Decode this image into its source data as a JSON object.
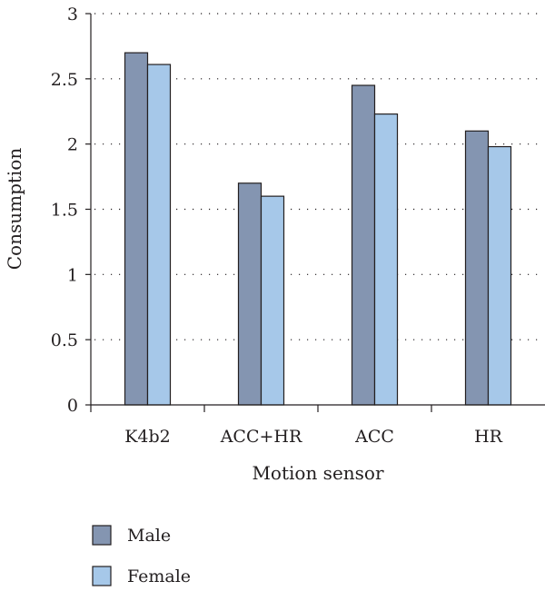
{
  "chart_data": {
    "type": "bar",
    "title": "",
    "xlabel": "Motion sensor",
    "ylabel": "Consumption",
    "categories": [
      "K4b2",
      "ACC+HR",
      "ACC",
      "HR"
    ],
    "series": [
      {
        "name": "Male",
        "color": "#8495b1",
        "values": [
          2.7,
          1.7,
          2.45,
          2.1
        ]
      },
      {
        "name": "Female",
        "color": "#a6c8e9",
        "values": [
          2.61,
          1.6,
          2.23,
          1.98
        ]
      }
    ],
    "ylim": [
      0,
      3
    ],
    "yticks": [
      "0",
      "0.5",
      "1",
      "1.5",
      "2",
      "2.5",
      "3"
    ],
    "grid": "horizontal dotted",
    "legend_position": "bottom-left"
  }
}
